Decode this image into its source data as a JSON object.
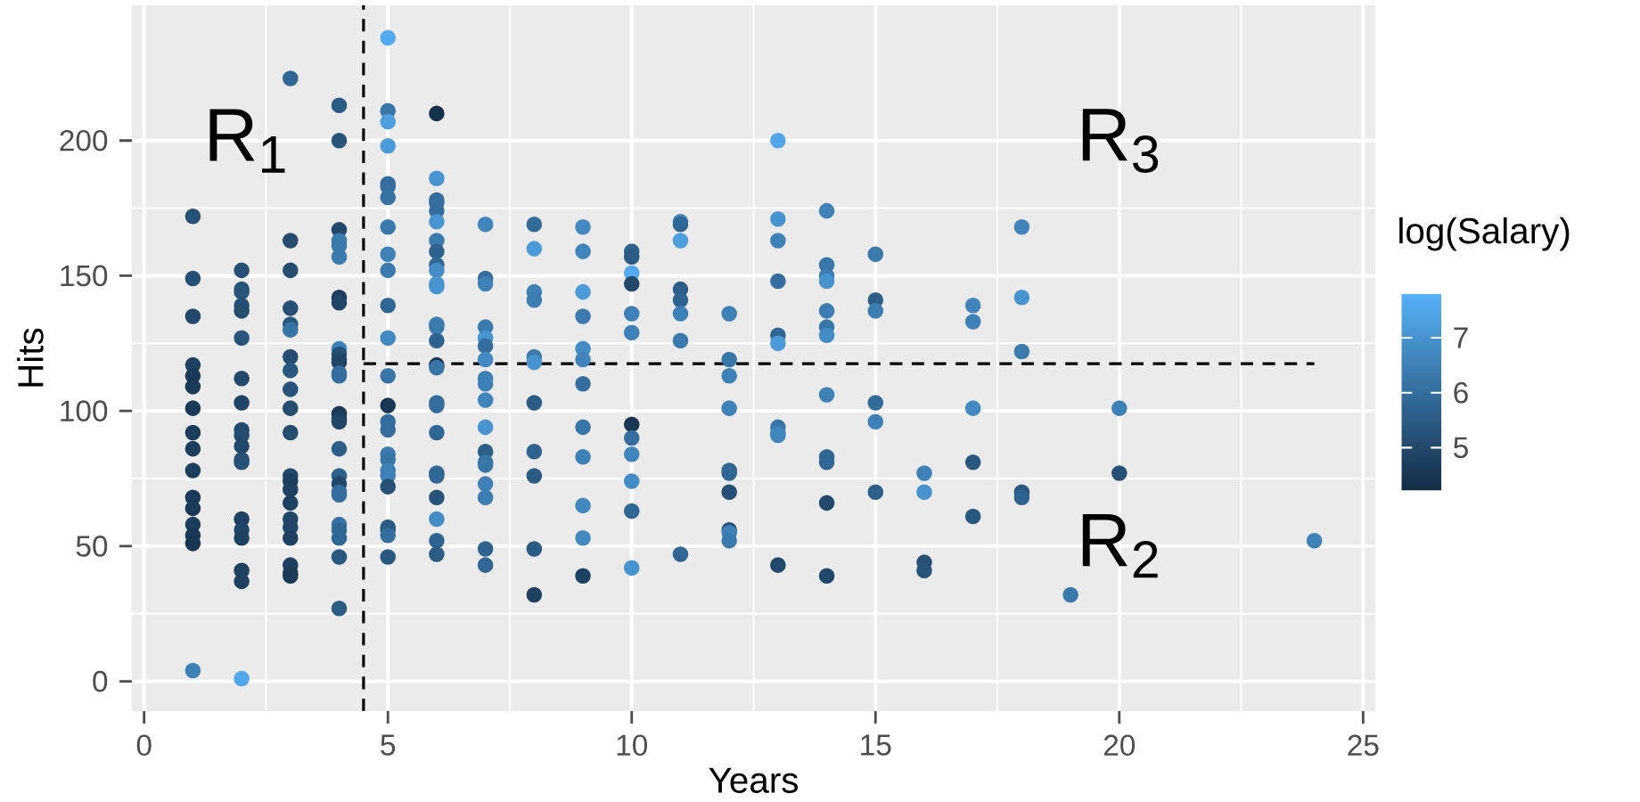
{
  "chart_data": {
    "type": "scatter",
    "xlabel": "Years",
    "ylabel": "Hits",
    "clabel": "log(Salary)",
    "xlim": [
      -0.25,
      25.25
    ],
    "ylim": [
      -11,
      250
    ],
    "xticks": [
      0,
      5,
      10,
      15,
      20,
      25
    ],
    "yticks": [
      0,
      50,
      100,
      150,
      200
    ],
    "grid": true,
    "marker": "circle",
    "clim": [
      4.2,
      7.8
    ],
    "cticks": [
      5,
      6,
      7
    ],
    "ref_lines": [
      {
        "axis": "x",
        "value": 4.5,
        "line_style": "dashed"
      },
      {
        "axis": "y",
        "value": 117.5,
        "line_style": "dashed"
      }
    ],
    "annotations": [
      "R$_{1}$",
      "R$_{2}$",
      "R$_{3}$"
    ],
    "x": [
      1,
      1,
      1,
      1,
      1,
      1,
      1,
      1,
      1,
      1,
      1,
      1,
      1,
      1,
      1,
      1,
      2,
      2,
      2,
      2,
      2,
      2,
      2,
      2,
      2,
      2,
      2,
      2,
      2,
      2,
      2,
      2,
      2,
      2,
      2,
      3,
      3,
      3,
      3,
      3,
      3,
      3,
      3,
      3,
      3,
      3,
      3,
      3,
      3,
      3,
      3,
      3,
      3,
      3,
      3,
      3,
      4,
      4,
      4,
      4,
      4,
      4,
      4,
      4,
      4,
      4,
      4,
      4,
      4,
      4,
      4,
      4,
      4,
      4,
      4,
      4,
      4,
      4,
      4,
      4,
      4,
      4,
      4,
      5,
      5,
      5,
      5,
      5,
      5,
      5,
      5,
      5,
      5,
      5,
      5,
      5,
      5,
      5,
      5,
      5,
      5,
      5,
      5,
      5,
      5,
      5,
      5,
      5,
      6,
      6,
      6,
      6,
      6,
      6,
      6,
      6,
      6,
      6,
      6,
      6,
      6,
      6,
      6,
      6,
      6,
      6,
      6,
      6,
      6,
      6,
      6,
      6,
      6,
      6,
      7,
      7,
      7,
      7,
      7,
      7,
      7,
      7,
      7,
      7,
      7,
      7,
      7,
      7,
      7,
      7,
      7,
      7,
      8,
      8,
      8,
      8,
      8,
      8,
      8,
      8,
      8,
      8,
      8,
      9,
      9,
      9,
      9,
      9,
      9,
      9,
      9,
      9,
      9,
      9,
      9,
      10,
      10,
      10,
      10,
      10,
      10,
      10,
      10,
      10,
      10,
      10,
      10,
      11,
      11,
      11,
      11,
      11,
      11,
      11,
      11,
      12,
      12,
      12,
      12,
      12,
      12,
      12,
      12,
      12,
      12,
      13,
      13,
      13,
      13,
      13,
      13,
      13,
      13,
      13,
      13,
      14,
      14,
      14,
      14,
      14,
      14,
      14,
      14,
      14,
      14,
      14,
      14,
      15,
      15,
      15,
      15,
      15,
      15,
      16,
      16,
      16,
      16,
      17,
      17,
      17,
      17,
      17,
      18,
      18,
      18,
      18,
      18,
      19,
      20,
      20,
      24
    ],
    "values": [
      172,
      149,
      135,
      117,
      113,
      109,
      101,
      92,
      86,
      78,
      68,
      64,
      58,
      54,
      51,
      4,
      152,
      145,
      144,
      139,
      137,
      127,
      112,
      103,
      93,
      91,
      87,
      82,
      81,
      60,
      56,
      53,
      41,
      37,
      1,
      223,
      163,
      152,
      138,
      132,
      130,
      120,
      115,
      108,
      101,
      92,
      76,
      74,
      71,
      66,
      60,
      57,
      53,
      43,
      40,
      39,
      213,
      200,
      167,
      163,
      161,
      157,
      142,
      140,
      123,
      121,
      119,
      118,
      114,
      113,
      99,
      97,
      96,
      86,
      76,
      73,
      70,
      69,
      58,
      56,
      53,
      46,
      27,
      238,
      211,
      207,
      198,
      184,
      183,
      179,
      168,
      158,
      152,
      139,
      127,
      113,
      102,
      96,
      93,
      84,
      82,
      78,
      76,
      72,
      57,
      56,
      54,
      46,
      210,
      186,
      178,
      177,
      174,
      170,
      163,
      159,
      154,
      152,
      147,
      146,
      132,
      131,
      126,
      117,
      116,
      103,
      102,
      92,
      77,
      76,
      68,
      60,
      52,
      47,
      169,
      149,
      147,
      131,
      127,
      124,
      119,
      112,
      110,
      104,
      94,
      85,
      81,
      80,
      73,
      68,
      49,
      43,
      169,
      160,
      144,
      141,
      120,
      118,
      103,
      85,
      76,
      49,
      32,
      168,
      159,
      144,
      135,
      123,
      119,
      110,
      94,
      83,
      65,
      53,
      39,
      159,
      157,
      151,
      147,
      136,
      129,
      95,
      90,
      84,
      74,
      63,
      42,
      170,
      169,
      163,
      145,
      141,
      136,
      126,
      47,
      136,
      119,
      113,
      101,
      78,
      77,
      70,
      56,
      55,
      52,
      200,
      171,
      163,
      148,
      128,
      125,
      94,
      92,
      91,
      43,
      174,
      154,
      150,
      148,
      137,
      131,
      128,
      106,
      83,
      81,
      66,
      39,
      158,
      141,
      137,
      103,
      96,
      70,
      77,
      70,
      44,
      41,
      139,
      133,
      101,
      81,
      61,
      168,
      142,
      122,
      70,
      68,
      32,
      101,
      77,
      52
    ],
    "cvalues": [
      5.2,
      5.2,
      5.0,
      4.8,
      4.6,
      4.6,
      4.6,
      4.7,
      4.7,
      4.7,
      4.6,
      4.6,
      4.7,
      4.6,
      4.5,
      6.5,
      5.2,
      5.3,
      5.3,
      5.2,
      5.1,
      5.3,
      5.0,
      4.9,
      5.0,
      5.1,
      5.0,
      5.2,
      5.2,
      4.8,
      4.9,
      4.8,
      4.8,
      4.8,
      7.5,
      5.8,
      5.1,
      5.1,
      5.2,
      5.4,
      6.2,
      5.1,
      5.4,
      5.3,
      5.1,
      5.1,
      5.0,
      4.8,
      4.8,
      4.8,
      4.9,
      4.9,
      4.8,
      4.8,
      4.7,
      4.6,
      5.5,
      5.3,
      5.0,
      6.3,
      6.3,
      6.3,
      4.7,
      4.9,
      6.5,
      5.2,
      5.0,
      4.9,
      6.0,
      6.0,
      4.6,
      4.8,
      4.9,
      5.6,
      5.6,
      5.0,
      6.0,
      6.0,
      6.1,
      5.8,
      5.8,
      5.4,
      5.5,
      7.6,
      6.2,
      7.3,
      7.2,
      6.0,
      6.0,
      6.1,
      6.3,
      6.5,
      6.3,
      5.8,
      6.7,
      6.2,
      4.5,
      6.0,
      6.0,
      6.3,
      6.2,
      6.5,
      6.5,
      5.2,
      5.5,
      5.5,
      6.0,
      5.4,
      4.4,
      7.0,
      6.0,
      6.0,
      6.0,
      7.0,
      6.3,
      5.7,
      5.8,
      6.8,
      7.0,
      7.0,
      6.5,
      6.3,
      5.7,
      4.5,
      6.2,
      6.0,
      6.0,
      5.8,
      5.8,
      5.8,
      5.3,
      6.8,
      5.7,
      5.5,
      6.6,
      6.0,
      6.5,
      6.3,
      7.0,
      6.0,
      6.7,
      6.5,
      6.5,
      6.6,
      7.0,
      5.6,
      6.2,
      6.2,
      6.5,
      6.4,
      5.7,
      5.8,
      5.9,
      7.2,
      6.5,
      6.4,
      6.3,
      7.0,
      5.5,
      5.7,
      5.5,
      5.5,
      4.8,
      6.7,
      6.6,
      7.2,
      6.3,
      6.8,
      6.6,
      6.0,
      6.2,
      6.5,
      6.7,
      6.7,
      4.8,
      5.7,
      5.5,
      7.6,
      5.0,
      6.5,
      6.5,
      4.5,
      6.0,
      6.6,
      6.8,
      5.8,
      7.0,
      6.5,
      5.8,
      7.3,
      5.6,
      5.7,
      6.5,
      6.3,
      5.8,
      6.5,
      6.2,
      6.5,
      6.5,
      5.8,
      5.8,
      5.2,
      5.2,
      6.5,
      6.3,
      7.5,
      7.0,
      6.5,
      6.0,
      5.8,
      7.2,
      6.2,
      6.4,
      6.6,
      5.0,
      6.5,
      6.2,
      6.4,
      7.0,
      6.4,
      6.2,
      6.8,
      6.5,
      5.8,
      5.8,
      5.0,
      5.0,
      6.3,
      5.6,
      6.4,
      5.9,
      6.5,
      5.6,
      6.5,
      7.0,
      5.2,
      5.3,
      6.6,
      6.5,
      6.7,
      5.4,
      5.4,
      6.6,
      7.0,
      6.3,
      5.4,
      5.7,
      6.3,
      6.5,
      5.2,
      6.5
    ]
  }
}
